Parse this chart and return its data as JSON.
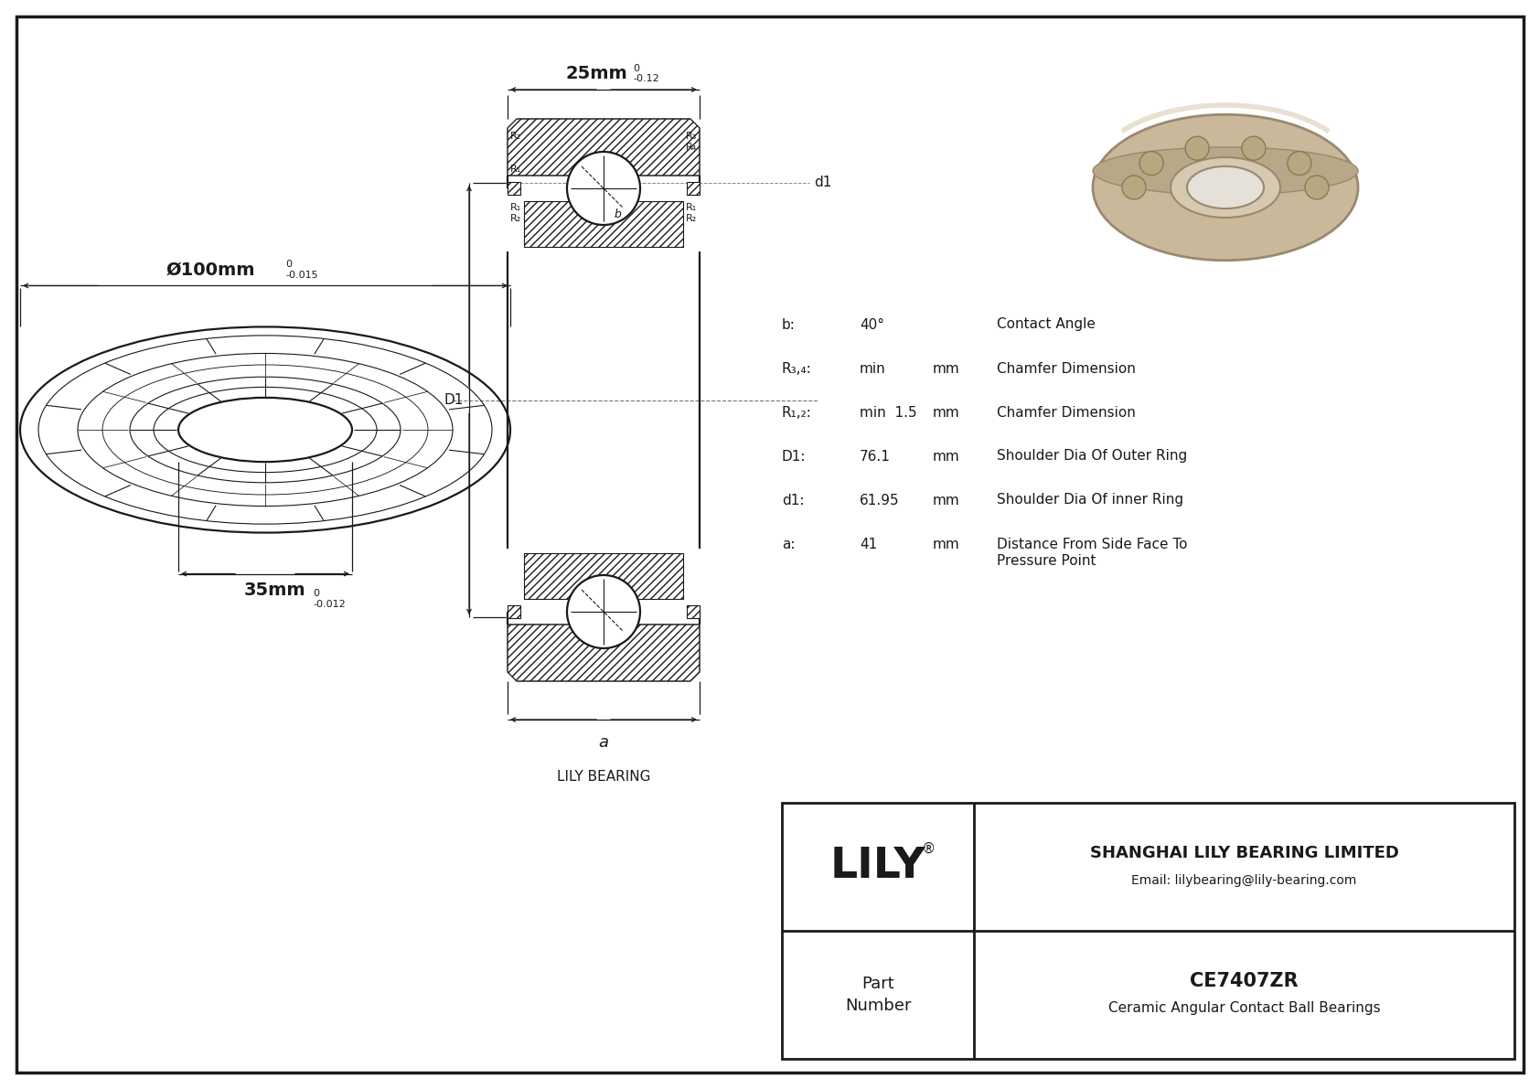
{
  "bg_color": "#ffffff",
  "line_color": "#1a1a1a",
  "outer_diameter_label": "Ø100mm",
  "outer_tol_upper": "0",
  "outer_tol_lower": "-0.015",
  "width_label": "25mm",
  "width_tol_upper": "0",
  "width_tol_lower": "-0.12",
  "inner_label": "35mm",
  "inner_tol_upper": "0",
  "inner_tol_lower": "-0.012",
  "specs": [
    {
      "param": "b:",
      "value": "40°",
      "unit": "",
      "desc": "Contact Angle"
    },
    {
      "param": "R₃,₄:",
      "value": "min",
      "unit": "mm",
      "desc": "Chamfer Dimension"
    },
    {
      "param": "R₁,₂:",
      "value": "min  1.5",
      "unit": "mm",
      "desc": "Chamfer Dimension"
    },
    {
      "param": "D1:",
      "value": "76.1",
      "unit": "mm",
      "desc": "Shoulder Dia Of Outer Ring"
    },
    {
      "param": "d1:",
      "value": "61.95",
      "unit": "mm",
      "desc": "Shoulder Dia Of inner Ring"
    },
    {
      "param": "a:",
      "value": "41",
      "unit": "mm",
      "desc": "Distance From Side Face To\nPressure Point"
    }
  ],
  "company": "SHANGHAI LILY BEARING LIMITED",
  "email": "Email: lilybearing@lily-bearing.com",
  "brand": "LILY",
  "brand_reg": "®",
  "part_number": "CE7407ZR",
  "part_desc": "Ceramic Angular Contact Ball Bearings",
  "lily_bearing_label": "LILY BEARING",
  "a_label": "a",
  "d1_label": "d1",
  "D1_label": "D1",
  "b_label": "b",
  "R1": "R₁",
  "R2": "R₂",
  "R3": "R₃",
  "R4": "R₄"
}
